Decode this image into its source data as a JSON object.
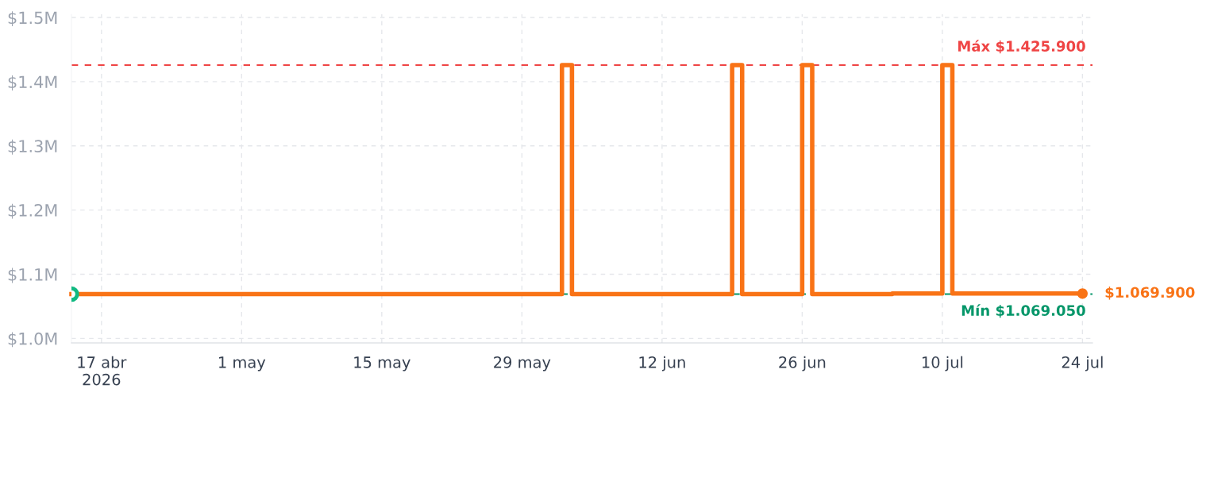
{
  "chart_data": {
    "type": "step",
    "series": [
      {
        "color": "#f97316",
        "x": [
          "2026-04-14",
          "2026-06-02",
          "2026-06-03",
          "2026-06-19",
          "2026-06-20",
          "2026-06-26",
          "2026-06-27",
          "2026-07-05",
          "2026-07-10",
          "2026-07-11",
          "2026-07-24"
        ],
        "values": [
          1069050,
          1425900,
          1069050,
          1425900,
          1069050,
          1425900,
          1069050,
          1069900,
          1425900,
          1069900,
          1069900
        ]
      },
      {
        "type": "scatter",
        "color": "#10b981",
        "x": [
          "2026-04-14"
        ],
        "values": [
          1069050
        ]
      },
      {
        "type": "scatter",
        "color": "#f97316",
        "x": [
          "2026-07-24"
        ],
        "values": [
          1069900
        ]
      }
    ],
    "xlim": [
      "2026-04-14",
      "2026-07-25"
    ],
    "xticks": [
      {
        "value": "2026-04-17",
        "label": "17 abr\n2026"
      },
      {
        "value": "2026-05-01",
        "label": "1 may"
      },
      {
        "value": "2026-05-15",
        "label": "15 may"
      },
      {
        "value": "2026-05-29",
        "label": "29 may"
      },
      {
        "value": "2026-06-12",
        "label": "12 jun"
      },
      {
        "value": "2026-06-26",
        "label": "26 jun"
      },
      {
        "value": "2026-07-10",
        "label": "10 jul"
      },
      {
        "value": "2026-07-24",
        "label": "24 jul"
      }
    ],
    "ylim": [
      993000,
      1505000
    ],
    "yticks": [
      {
        "value": 1000000,
        "label": "$1.0M"
      },
      {
        "value": 1100000,
        "label": "$1.1M"
      },
      {
        "value": 1200000,
        "label": "$1.2M"
      },
      {
        "value": 1300000,
        "label": "$1.3M"
      },
      {
        "value": 1400000,
        "label": "$1.4M"
      },
      {
        "value": 1500000,
        "label": "$1.5M"
      }
    ],
    "ref_lines": [
      {
        "axis": "y",
        "value": 1425900,
        "label": "Máx $1.425.900",
        "color": "#ef4444",
        "line_style": "dashed"
      },
      {
        "axis": "y",
        "value": 1069050,
        "label": "Mín $1.069.050",
        "color": "#059669",
        "line_style": "dashed"
      }
    ],
    "annotations": [
      {
        "text": "$1.069.900",
        "x": "2026-07-24",
        "y": 1069900
      }
    ],
    "grid": true,
    "line_style": "solid"
  }
}
